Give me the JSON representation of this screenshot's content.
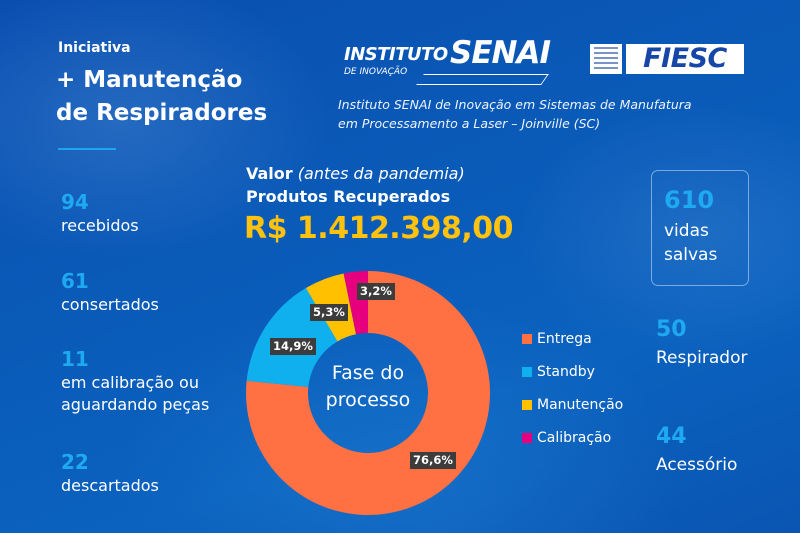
{
  "header": {
    "kicker": "Iniciativa",
    "title_line1": "+ Manutenção",
    "title_line2": "de Respiradores"
  },
  "logos": {
    "senai": {
      "instituto": "INSTITUTO",
      "senai": "SENAI",
      "sub": "DE INOVAÇÃO"
    },
    "fiesc": {
      "text": "FIESC"
    }
  },
  "institute_description": {
    "line1": "Instituto SENAI de Inovação em Sistemas de Manufatura",
    "line2": "em Processamento a Laser – Joinville (SC)"
  },
  "left_stats": [
    {
      "value": "94",
      "label": "recebidos"
    },
    {
      "value": "61",
      "label": "consertados"
    },
    {
      "value": "11",
      "label_line1": "em calibração ou",
      "label_line2": "aguardando peças"
    },
    {
      "value": "22",
      "label": "descartados"
    }
  ],
  "valor": {
    "label_bold": "Valor",
    "label_italic": "(antes da pandemia)",
    "subtitle": "Produtos Recuperados",
    "amount": "R$ 1.412.398,00"
  },
  "right_stats": {
    "highlight": {
      "value": "610",
      "label_line1": "vidas",
      "label_line2": "salvas"
    },
    "items": [
      {
        "value": "50",
        "label": "Respirador"
      },
      {
        "value": "44",
        "label": "Acessório"
      }
    ]
  },
  "colors": {
    "accent_number": "#1fa9f0",
    "amount": "#ffc20e",
    "entrega": "#ff7043",
    "standby": "#10b0ef",
    "manutencao": "#ffc000",
    "calibracao": "#e6007e"
  },
  "chart_data": {
    "type": "pie",
    "subtype": "donut",
    "title": "Fase do processo",
    "center_label_line1": "Fase do",
    "center_label_line2": "processo",
    "categories": [
      "Entrega",
      "Standby",
      "Manutenção",
      "Calibração"
    ],
    "values": [
      76.6,
      14.9,
      5.3,
      3.2
    ],
    "value_labels": [
      "76,6%",
      "14,9%",
      "5,3%",
      "3,2%"
    ],
    "colors": [
      "#ff7043",
      "#10b0ef",
      "#ffc000",
      "#e6007e"
    ],
    "start_angle": "12 o'clock, clockwise",
    "legend_position": "right"
  }
}
